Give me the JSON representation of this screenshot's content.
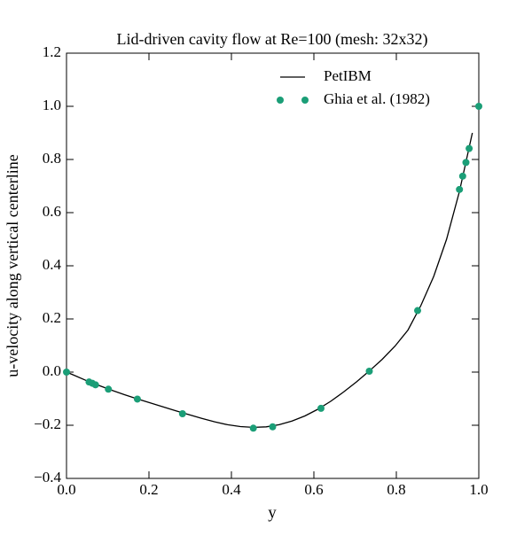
{
  "chart_data": {
    "type": "line",
    "title": "Lid-driven cavity flow at Re=100 (mesh: 32x32)",
    "x_label": "y",
    "y_label": "u-velocity along vertical centerline",
    "xlim": [
      0,
      1
    ],
    "ylim": [
      -0.4,
      1.2
    ],
    "xticks": [
      {
        "value": 0,
        "label": "0.0"
      },
      0.2,
      0.4,
      0.6,
      0.8,
      {
        "value": 1,
        "label": "1.0"
      }
    ],
    "yticks": [
      {
        "value": -0.4,
        "label": "−0.4"
      },
      {
        "value": -0.2,
        "label": "−0.2"
      },
      {
        "value": 0,
        "label": "0.0"
      },
      0.2,
      0.4,
      0.6,
      0.8,
      {
        "value": 1,
        "label": "1.0"
      },
      1.2
    ],
    "legend": "upper right",
    "series": [
      {
        "name": "PetIBM",
        "color": "#000000",
        "style": "line",
        "x": [
          0,
          0.015625,
          0.046875,
          0.078125,
          0.109375,
          0.140625,
          0.171875,
          0.203125,
          0.234375,
          0.265625,
          0.296875,
          0.328125,
          0.359375,
          0.390625,
          0.421875,
          0.453125,
          0.484375,
          0.515625,
          0.546875,
          0.578125,
          0.609375,
          0.640625,
          0.671875,
          0.703125,
          0.734375,
          0.765625,
          0.796875,
          0.828125,
          0.859375,
          0.890625,
          0.921875,
          0.953125,
          0.984375
        ],
        "values": [
          0,
          -0.01,
          -0.031,
          -0.05,
          -0.068,
          -0.085,
          -0.101,
          -0.116,
          -0.131,
          -0.146,
          -0.16,
          -0.174,
          -0.187,
          -0.198,
          -0.205,
          -0.208,
          -0.206,
          -0.198,
          -0.184,
          -0.165,
          -0.14,
          -0.11,
          -0.075,
          -0.037,
          0.004,
          0.048,
          0.098,
          0.158,
          0.25,
          0.36,
          0.5,
          0.68,
          0.9
        ]
      },
      {
        "name": "Ghia et al. (1982)",
        "color": "#1b9e77",
        "style": "markers",
        "x": [
          0,
          0.0547,
          0.0625,
          0.0703,
          0.1016,
          0.1719,
          0.2813,
          0.4531,
          0.5,
          0.6172,
          0.7344,
          0.8516,
          0.9531,
          0.9609,
          0.9688,
          0.9766,
          1
        ],
        "values": [
          0,
          -0.03717,
          -0.04192,
          -0.04775,
          -0.06434,
          -0.1015,
          -0.15662,
          -0.2109,
          -0.20581,
          -0.13641,
          0.00332,
          0.23151,
          0.68717,
          0.73722,
          0.78871,
          0.84123,
          1
        ]
      }
    ]
  }
}
